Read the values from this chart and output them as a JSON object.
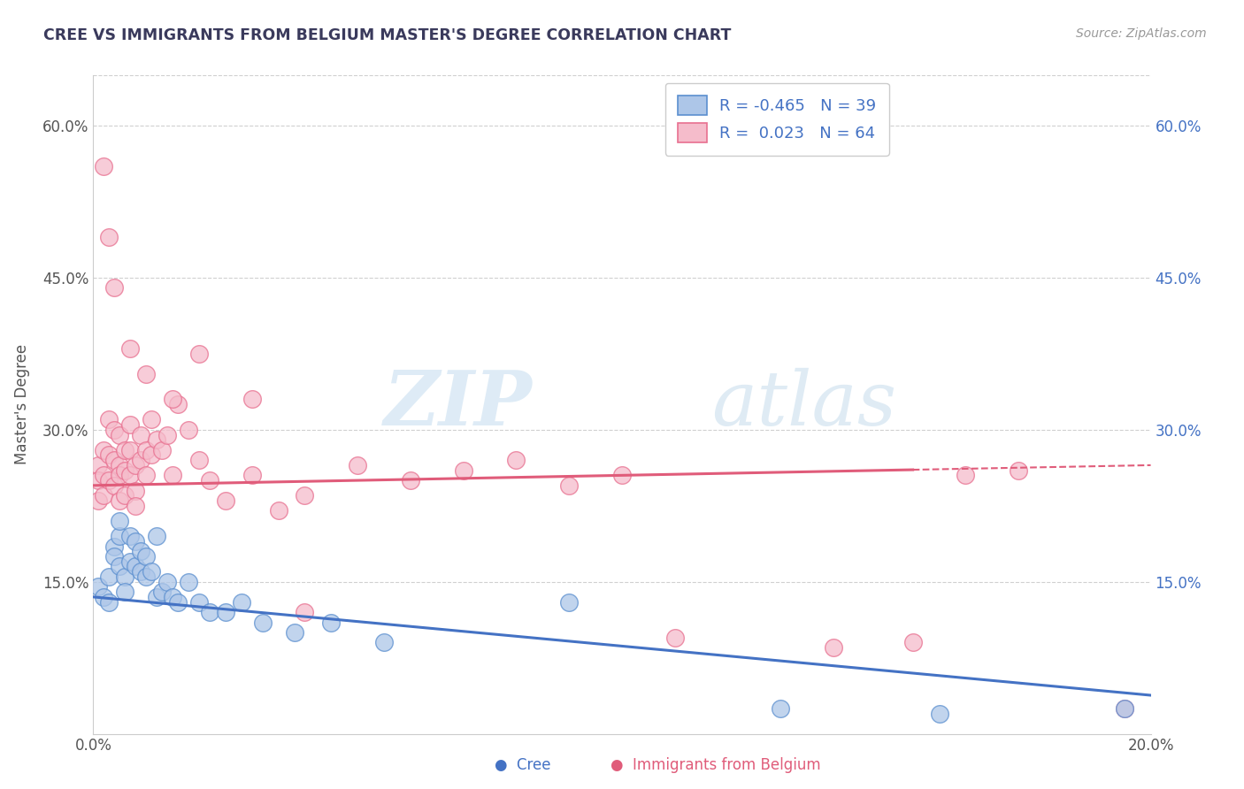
{
  "title": "CREE VS IMMIGRANTS FROM BELGIUM MASTER'S DEGREE CORRELATION CHART",
  "source": "Source: ZipAtlas.com",
  "ylabel": "Master's Degree",
  "xlabel": "",
  "xlim": [
    0.0,
    0.2
  ],
  "ylim": [
    0.0,
    0.65
  ],
  "yticks": [
    0.0,
    0.15,
    0.3,
    0.45,
    0.6
  ],
  "ytick_labels": [
    "",
    "15.0%",
    "30.0%",
    "45.0%",
    "60.0%"
  ],
  "xticks": [
    0.0,
    0.05,
    0.1,
    0.15,
    0.2
  ],
  "xtick_labels": [
    "0.0%",
    "",
    "",
    "",
    "20.0%"
  ],
  "cree_color": "#adc6e8",
  "belgium_color": "#f5bccb",
  "cree_edge_color": "#5b8fcf",
  "belgium_edge_color": "#e87090",
  "cree_line_color": "#4472c4",
  "belgium_line_color": "#e05c7a",
  "cree_R": -0.465,
  "cree_N": 39,
  "belgium_R": 0.023,
  "belgium_N": 64,
  "watermark_zip": "ZIP",
  "watermark_atlas": "atlas",
  "title_color": "#3a3a5c",
  "axis_color": "#4472c4",
  "grid_color": "#d0d0d0",
  "right_ytick_labels": [
    "",
    "15.0%",
    "30.0%",
    "45.0%",
    "60.0%"
  ],
  "cree_trend_x0": 0.0,
  "cree_trend_y0": 0.135,
  "cree_trend_x1": 0.2,
  "cree_trend_y1": 0.038,
  "belgium_trend_x0": 0.0,
  "belgium_trend_y0": 0.245,
  "belgium_trend_x1": 0.2,
  "belgium_trend_y1": 0.265,
  "cree_x": [
    0.001,
    0.002,
    0.003,
    0.003,
    0.004,
    0.004,
    0.005,
    0.005,
    0.005,
    0.006,
    0.006,
    0.007,
    0.007,
    0.008,
    0.008,
    0.009,
    0.009,
    0.01,
    0.01,
    0.011,
    0.012,
    0.012,
    0.013,
    0.014,
    0.015,
    0.016,
    0.018,
    0.02,
    0.022,
    0.025,
    0.028,
    0.032,
    0.038,
    0.045,
    0.055,
    0.09,
    0.13,
    0.16,
    0.195
  ],
  "cree_y": [
    0.145,
    0.135,
    0.155,
    0.13,
    0.185,
    0.175,
    0.165,
    0.195,
    0.21,
    0.155,
    0.14,
    0.17,
    0.195,
    0.165,
    0.19,
    0.18,
    0.16,
    0.175,
    0.155,
    0.16,
    0.195,
    0.135,
    0.14,
    0.15,
    0.135,
    0.13,
    0.15,
    0.13,
    0.12,
    0.12,
    0.13,
    0.11,
    0.1,
    0.11,
    0.09,
    0.13,
    0.025,
    0.02,
    0.025
  ],
  "belgium_x": [
    0.001,
    0.001,
    0.001,
    0.002,
    0.002,
    0.002,
    0.003,
    0.003,
    0.003,
    0.004,
    0.004,
    0.004,
    0.005,
    0.005,
    0.005,
    0.005,
    0.006,
    0.006,
    0.006,
    0.007,
    0.007,
    0.007,
    0.008,
    0.008,
    0.008,
    0.009,
    0.009,
    0.01,
    0.01,
    0.011,
    0.011,
    0.012,
    0.013,
    0.014,
    0.015,
    0.016,
    0.018,
    0.02,
    0.022,
    0.025,
    0.03,
    0.035,
    0.04,
    0.05,
    0.06,
    0.07,
    0.08,
    0.09,
    0.1,
    0.11,
    0.14,
    0.155,
    0.165,
    0.175,
    0.195,
    0.002,
    0.003,
    0.004,
    0.007,
    0.01,
    0.015,
    0.02,
    0.03,
    0.04
  ],
  "belgium_y": [
    0.265,
    0.25,
    0.23,
    0.28,
    0.255,
    0.235,
    0.31,
    0.275,
    0.25,
    0.3,
    0.27,
    0.245,
    0.295,
    0.265,
    0.255,
    0.23,
    0.28,
    0.26,
    0.235,
    0.305,
    0.28,
    0.255,
    0.265,
    0.24,
    0.225,
    0.295,
    0.27,
    0.28,
    0.255,
    0.31,
    0.275,
    0.29,
    0.28,
    0.295,
    0.255,
    0.325,
    0.3,
    0.27,
    0.25,
    0.23,
    0.255,
    0.22,
    0.235,
    0.265,
    0.25,
    0.26,
    0.27,
    0.245,
    0.255,
    0.095,
    0.085,
    0.09,
    0.255,
    0.26,
    0.025,
    0.56,
    0.49,
    0.44,
    0.38,
    0.355,
    0.33,
    0.375,
    0.33,
    0.12
  ]
}
